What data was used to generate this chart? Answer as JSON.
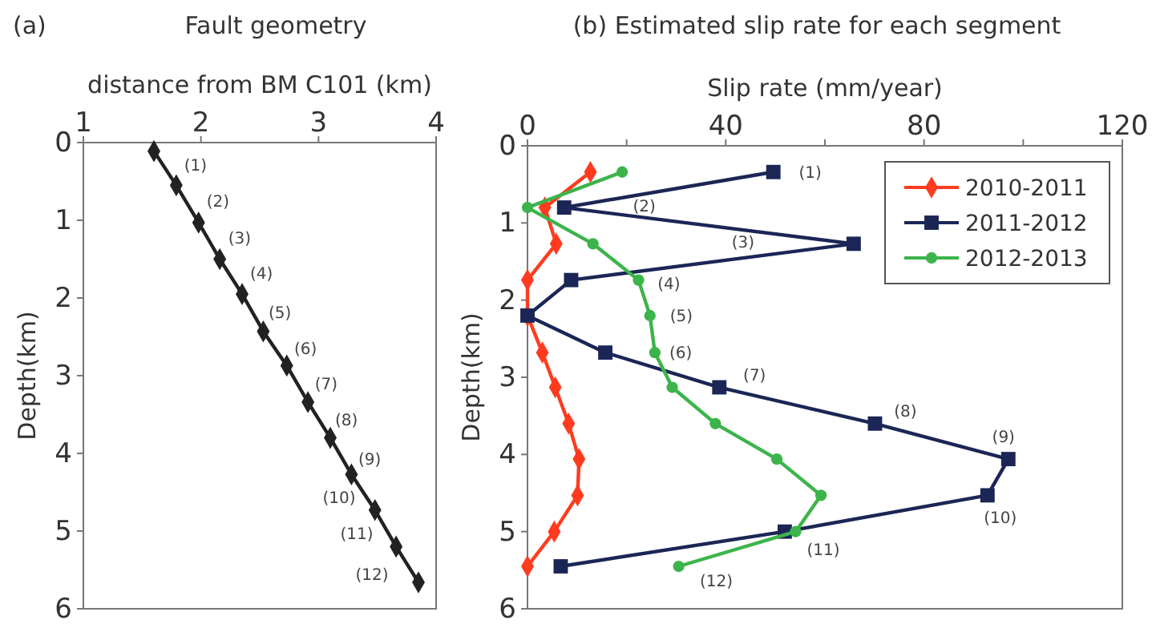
{
  "chart_data": [
    {
      "type": "line",
      "title": "Fault geometry",
      "xlabel": "distance from BM C101 (km)",
      "ylabel": "Depth(km)",
      "xlim": [
        1,
        4
      ],
      "xticks": [
        1,
        2,
        3,
        4
      ],
      "ylim": [
        6,
        0
      ],
      "yticks": [
        0,
        1,
        2,
        3,
        4,
        5,
        6
      ],
      "grid": false,
      "legend": false,
      "line_style": "solid",
      "series": [
        {
          "color": "#222222",
          "marker": "diamond",
          "x": [
            1.6,
            1.79,
            1.98,
            2.16,
            2.35,
            2.53,
            2.73,
            2.91,
            3.1,
            3.28,
            3.48,
            3.66,
            3.85
          ],
          "values": [
            0.11,
            0.55,
            1.03,
            1.5,
            1.95,
            2.43,
            2.87,
            3.34,
            3.8,
            4.27,
            4.73,
            5.2,
            5.66
          ]
        }
      ],
      "annotations": [
        "(a)",
        "(1)",
        "(2)",
        "(3)",
        "(4)",
        "(5)",
        "(6)",
        "(7)",
        "(8)",
        "(9)",
        "(10)",
        "(11)",
        "(12)"
      ]
    },
    {
      "type": "line",
      "title": "(b) Estimated slip rate for each segment",
      "xlabel": "Slip rate (mm/year)",
      "ylabel": "Depth(km)",
      "xlim": [
        0,
        120
      ],
      "xticks": [
        0,
        {
          "value": 20,
          "label": null
        },
        40,
        {
          "value": 60,
          "label": null
        },
        80,
        {
          "value": 100,
          "label": null
        },
        120
      ],
      "ylim": [
        6,
        0
      ],
      "yticks": [
        0,
        1,
        2,
        3,
        4,
        5,
        6
      ],
      "grid": false,
      "legend": "top right",
      "line_style": "solid",
      "series": [
        {
          "name": "2010-2011",
          "color": "#ff3b1f",
          "marker": "diamond",
          "x": [
            12.7,
            3.5,
            5.8,
            0,
            0,
            3.0,
            5.6,
            8.3,
            10.4,
            10.1,
            5.4,
            0
          ],
          "values": [
            0.34,
            0.8,
            1.27,
            1.74,
            2.2,
            2.68,
            3.13,
            3.6,
            4.06,
            4.53,
            5.0,
            5.45
          ]
        },
        {
          "name": "2011-2012",
          "color": "#1b2656",
          "marker": "square",
          "x": [
            49.6,
            7.4,
            65.8,
            8.8,
            0,
            15.7,
            38.7,
            70.1,
            97.0,
            92.8,
            51.9,
            6.7
          ],
          "values": [
            0.34,
            0.8,
            1.27,
            1.74,
            2.2,
            2.68,
            3.13,
            3.6,
            4.06,
            4.53,
            5.0,
            5.45
          ]
        },
        {
          "name": "2012-2013",
          "color": "#3cb44b",
          "marker": "circle",
          "x": [
            19.1,
            0,
            13.2,
            22.4,
            24.7,
            25.7,
            29.2,
            37.9,
            50.3,
            59.2,
            54.1,
            30.5
          ],
          "values": [
            0.34,
            0.8,
            1.27,
            1.74,
            2.2,
            2.68,
            3.13,
            3.6,
            4.06,
            4.53,
            5.0,
            5.45
          ]
        }
      ],
      "annotations": [
        "(1)",
        "(2)",
        "(3)",
        "(4)",
        "(5)",
        "(6)",
        "(7)",
        "(8)",
        "(9)",
        "(10)",
        "(11)",
        "(12)"
      ]
    }
  ]
}
